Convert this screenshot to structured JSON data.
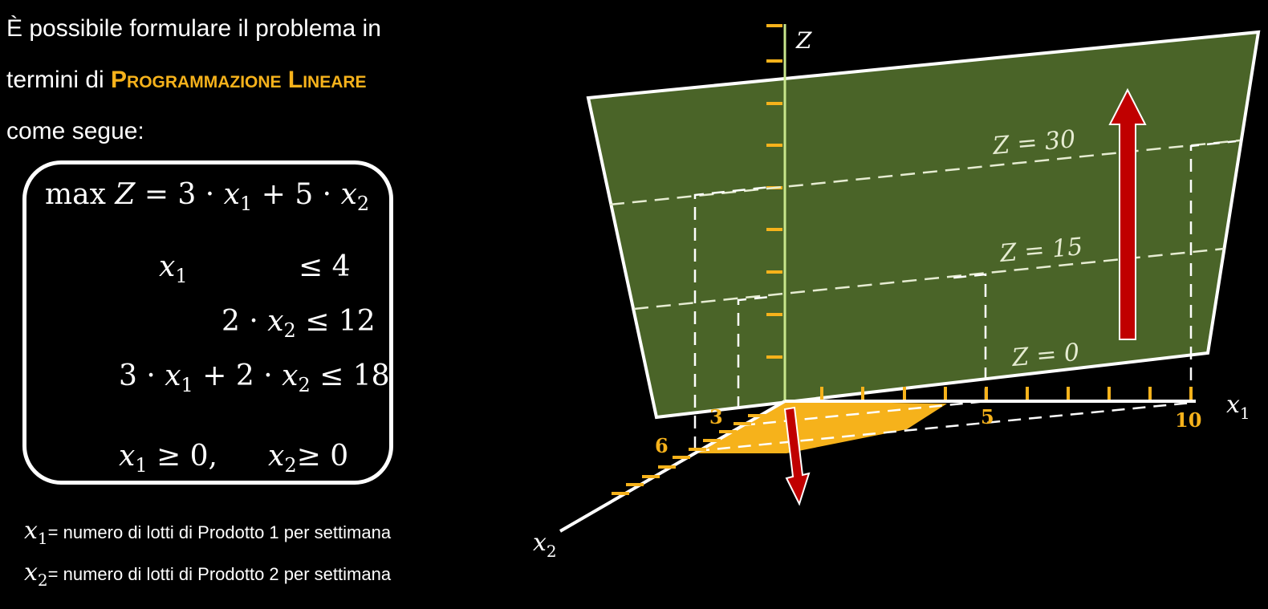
{
  "intro": {
    "line1": "È possibile formulare il problema in",
    "line2_prefix": "termini di ",
    "line2_highlight": "Programmazione Lineare",
    "line3": "come segue:"
  },
  "model": {
    "objective": {
      "prefix": "max ",
      "var": "Z",
      "expr": " = 3 · ",
      "v1": "x",
      "s1": "1",
      "mid": " + 5 · ",
      "v2": "x",
      "s2": "2"
    },
    "c1": {
      "var": "x",
      "sub": "1",
      "rhs": "≤ 4"
    },
    "c2": {
      "lhs": "2 · ",
      "var": "x",
      "sub": "2",
      "rhs": " ≤ 12"
    },
    "c3": {
      "a": "3 · ",
      "v1": "x",
      "s1": "1",
      "mid": " + 2 · ",
      "v2": "x",
      "s2": "2",
      "rhs": " ≤ 18"
    },
    "nonneg": {
      "v1": "x",
      "s1": "1",
      "t1": " ≥ 0,",
      "v2": "x",
      "s2": "2",
      "t2": "≥ 0"
    }
  },
  "legend": [
    {
      "var": "x",
      "sub": "1",
      "text": "= numero di lotti di Prodotto 1 per settimana"
    },
    {
      "var": "x",
      "sub": "2",
      "text": "= numero di lotti di Prodotto 2 per settimana"
    }
  ],
  "diagram": {
    "axis_z": "Z",
    "axis_x1": {
      "var": "x",
      "sub": "1"
    },
    "axis_x2": {
      "var": "x",
      "sub": "2"
    },
    "level_lines": [
      "Z = 30",
      "Z = 15",
      "Z = 0"
    ],
    "tick_labels": {
      "x1_3": "3",
      "x1_5": "5",
      "x1_10": "10",
      "x2_6": "6"
    },
    "colors": {
      "plane": "#4a6428",
      "feasible_region": "#f6b21b",
      "arrow": "#c00000",
      "ticks": "#f6b21b",
      "z_axis": "#c8e68c"
    }
  }
}
